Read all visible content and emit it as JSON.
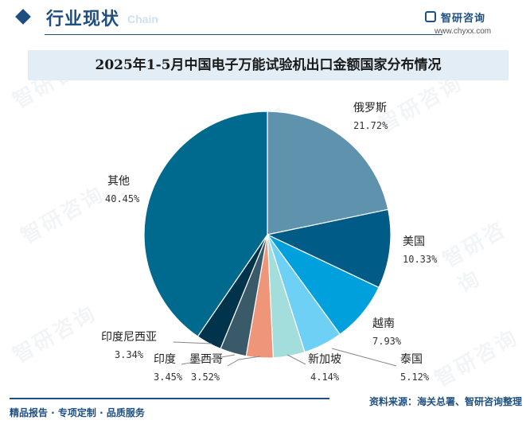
{
  "header": {
    "section_title": "行业现状",
    "section_subtitle": "Chain",
    "brand_name": "智研咨询",
    "brand_url": "www.chyxx.com"
  },
  "watermark": "智研咨询",
  "chart_data": {
    "type": "pie",
    "title": "2025年1-5月中国电子万能试验机出口金额国家分布情况",
    "slices": [
      {
        "label": "俄罗斯",
        "value": 21.72,
        "value_label": "21.72%",
        "color": "#5f93ad"
      },
      {
        "label": "美国",
        "value": 10.33,
        "value_label": "10.33%",
        "color": "#005b86"
      },
      {
        "label": "越南",
        "value": 7.93,
        "value_label": "7.93%",
        "color": "#00a0dc"
      },
      {
        "label": "泰国",
        "value": 5.12,
        "value_label": "5.12%",
        "color": "#6fd0f5"
      },
      {
        "label": "新加坡",
        "value": 4.14,
        "value_label": "4.14%",
        "color": "#a4dedc"
      },
      {
        "label": "墨西哥",
        "value": 3.52,
        "value_label": "3.52%",
        "color": "#ef957a"
      },
      {
        "label": "印度",
        "value": 3.45,
        "value_label": "3.45%",
        "color": "#3a5a6a"
      },
      {
        "label": "印度尼西亚",
        "value": 3.34,
        "value_label": "3.34%",
        "color": "#00344d"
      },
      {
        "label": "其他",
        "value": 40.45,
        "value_label": "40.45%",
        "color": "#006a8e"
      }
    ]
  },
  "footer": {
    "left": "精品报告 · 专项定制 · 品质服务",
    "source": "资料来源：海关总署、智研咨询整理"
  }
}
